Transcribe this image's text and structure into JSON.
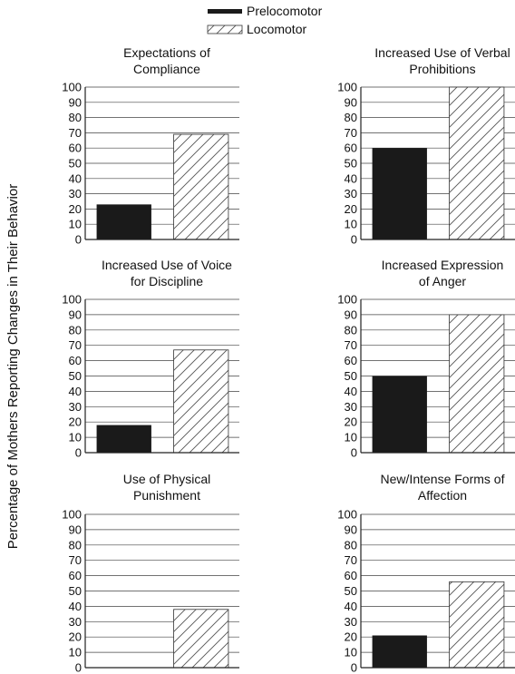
{
  "figure": {
    "ylabel": "Percentage of Mothers Reporting Changes in Their Behavior",
    "legend": [
      {
        "name": "Prelocomotor",
        "style": "solid-black"
      },
      {
        "name": "Locomotor",
        "style": "diagonal-hatch"
      }
    ]
  },
  "colors": {
    "prelocomotor": "#1a1a1a",
    "hatch": "#555555",
    "axis": "#222222"
  },
  "chart_data": [
    {
      "type": "bar",
      "title": "Expectations of Compliance",
      "title_lines": [
        "Expectations of",
        "Compliance"
      ],
      "series": [
        {
          "name": "Prelocomotor",
          "values": [
            23
          ]
        },
        {
          "name": "Locomotor",
          "values": [
            69
          ]
        }
      ],
      "ylim": [
        0,
        100
      ],
      "yticks": [
        0,
        10,
        20,
        30,
        40,
        50,
        60,
        70,
        80,
        90,
        100
      ],
      "grid": true
    },
    {
      "type": "bar",
      "title": "Increased Use of Verbal Prohibitions",
      "title_lines": [
        "Increased Use of Verbal",
        "Prohibitions"
      ],
      "series": [
        {
          "name": "Prelocomotor",
          "values": [
            60
          ]
        },
        {
          "name": "Locomotor",
          "values": [
            100
          ]
        }
      ],
      "ylim": [
        0,
        100
      ],
      "yticks": [
        0,
        10,
        20,
        30,
        40,
        50,
        60,
        70,
        80,
        90,
        100
      ],
      "grid": true
    },
    {
      "type": "bar",
      "title": "Increased Use of Voice for Discipline",
      "title_lines": [
        "Increased Use of Voice",
        "for Discipline"
      ],
      "series": [
        {
          "name": "Prelocomotor",
          "values": [
            18
          ]
        },
        {
          "name": "Locomotor",
          "values": [
            67
          ]
        }
      ],
      "ylim": [
        0,
        100
      ],
      "yticks": [
        0,
        10,
        20,
        30,
        40,
        50,
        60,
        70,
        80,
        90,
        100
      ],
      "grid": true
    },
    {
      "type": "bar",
      "title": "Increased Expression of Anger",
      "title_lines": [
        "Increased Expression",
        "of Anger"
      ],
      "series": [
        {
          "name": "Prelocomotor",
          "values": [
            50
          ]
        },
        {
          "name": "Locomotor",
          "values": [
            90
          ]
        }
      ],
      "ylim": [
        0,
        100
      ],
      "yticks": [
        0,
        10,
        20,
        30,
        40,
        50,
        60,
        70,
        80,
        90,
        100
      ],
      "grid": true
    },
    {
      "type": "bar",
      "title": "Use of Physical Punishment",
      "title_lines": [
        "Use of Physical",
        "Punishment"
      ],
      "series": [
        {
          "name": "Prelocomotor",
          "values": [
            0
          ]
        },
        {
          "name": "Locomotor",
          "values": [
            38
          ]
        }
      ],
      "ylim": [
        0,
        100
      ],
      "yticks": [
        0,
        10,
        20,
        30,
        40,
        50,
        60,
        70,
        80,
        90,
        100
      ],
      "grid": true
    },
    {
      "type": "bar",
      "title": "New/Intense Forms of Affection",
      "title_lines": [
        "New/Intense Forms of",
        "Affection"
      ],
      "series": [
        {
          "name": "Prelocomotor",
          "values": [
            21
          ]
        },
        {
          "name": "Locomotor",
          "values": [
            56
          ]
        }
      ],
      "ylim": [
        0,
        100
      ],
      "yticks": [
        0,
        10,
        20,
        30,
        40,
        50,
        60,
        70,
        80,
        90,
        100
      ],
      "grid": true
    }
  ]
}
